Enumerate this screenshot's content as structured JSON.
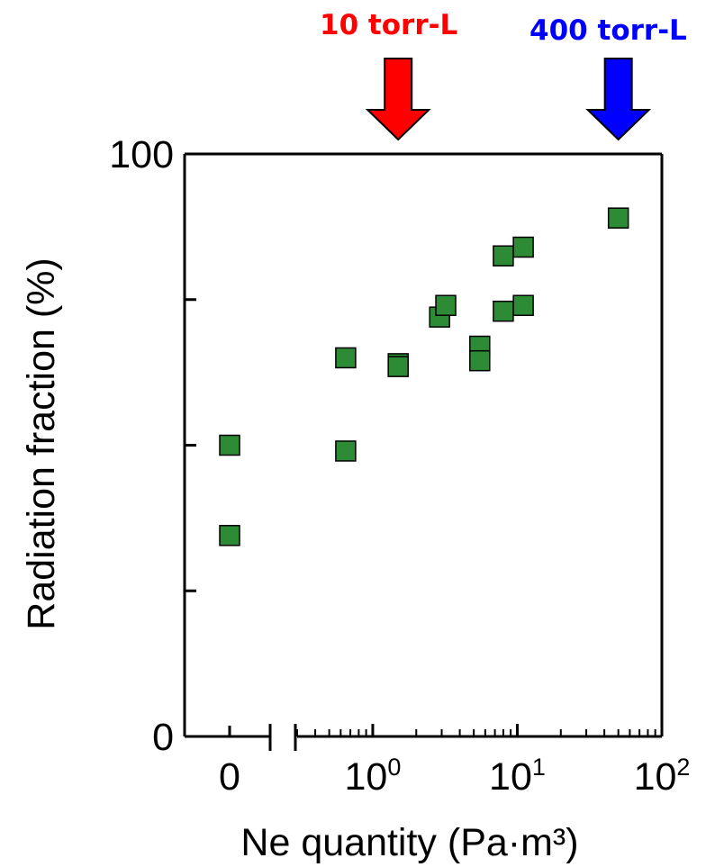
{
  "chart_data": {
    "type": "scatter",
    "xlabel": "Ne quantity (Pa·m³)",
    "ylabel": "Radiation fraction (%)",
    "x_scale": "broken: linear point at 0, then log10",
    "xlim_log": [
      0.3,
      100
    ],
    "ylim": [
      0,
      100
    ],
    "y_tick_labels": [
      "0",
      "100"
    ],
    "y_ticks": [
      0,
      25,
      50,
      75,
      100
    ],
    "x_tick_labels": [
      {
        "value": 0,
        "base": "0",
        "exp": ""
      },
      {
        "value": 1,
        "base": "10",
        "exp": "0"
      },
      {
        "value": 10,
        "base": "10",
        "exp": "1"
      },
      {
        "value": 100,
        "base": "10",
        "exp": "2"
      }
    ],
    "marker_color": "#2e8b35",
    "points": [
      {
        "x": 0,
        "y": 50
      },
      {
        "x": 0,
        "y": 34.5
      },
      {
        "x": 0.65,
        "y": 65
      },
      {
        "x": 0.65,
        "y": 49
      },
      {
        "x": 1.5,
        "y": 64
      },
      {
        "x": 1.5,
        "y": 63.5
      },
      {
        "x": 2.9,
        "y": 72
      },
      {
        "x": 3.2,
        "y": 74
      },
      {
        "x": 5.5,
        "y": 67
      },
      {
        "x": 5.5,
        "y": 64.5
      },
      {
        "x": 8,
        "y": 82.5
      },
      {
        "x": 8,
        "y": 73
      },
      {
        "x": 11,
        "y": 84
      },
      {
        "x": 11,
        "y": 74
      },
      {
        "x": 50,
        "y": 89
      }
    ],
    "annotations": [
      {
        "text": "10 torr-L",
        "x": 1.5,
        "color": "#ff0000"
      },
      {
        "text": "400 torr-L",
        "x": 50,
        "color": "#0000ff"
      }
    ]
  }
}
